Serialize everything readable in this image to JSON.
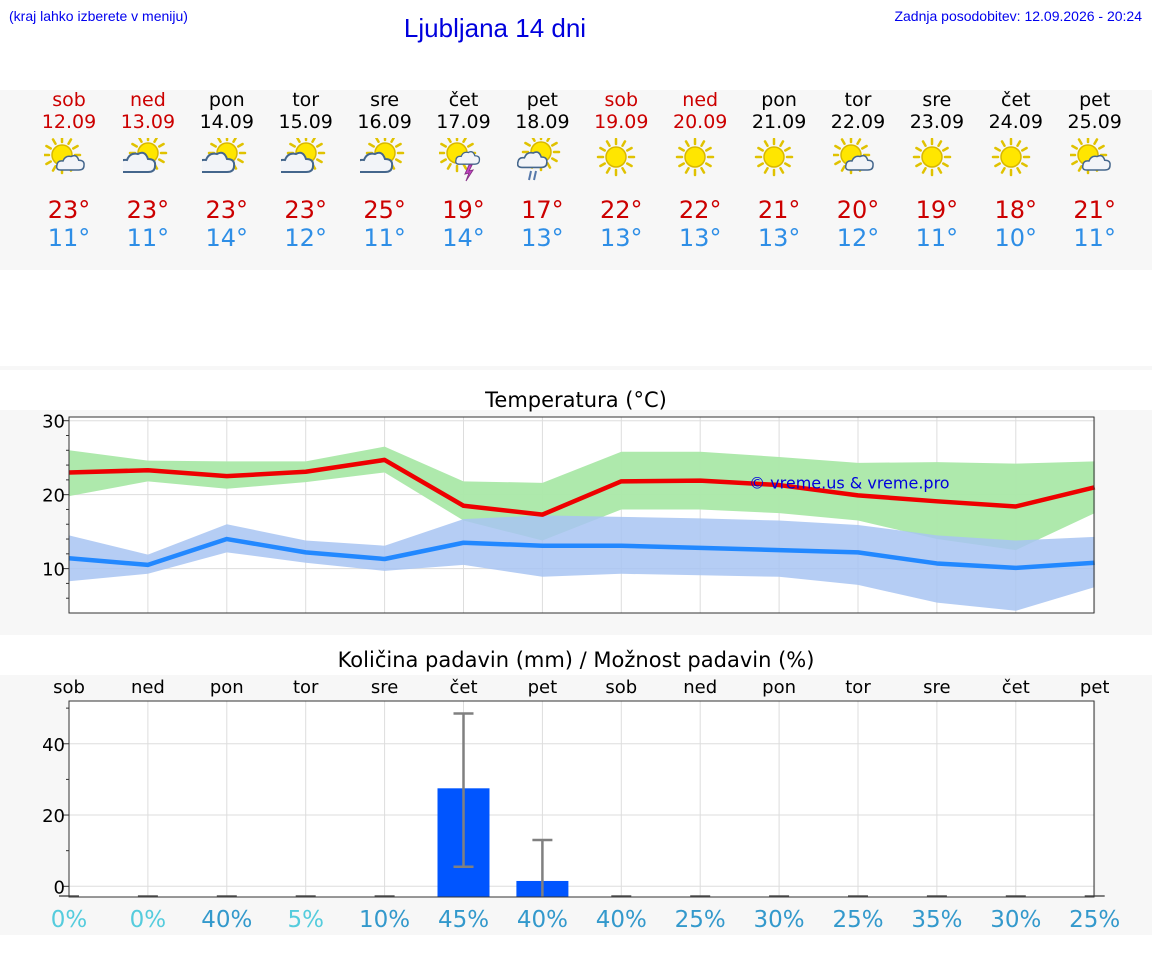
{
  "header": {
    "hint": "(kraj lahko izberete v meniju)",
    "title": "Ljubljana 14 dni",
    "updated": "Zadnja posodobitev: 12.09.2026 - 20:24"
  },
  "days": [
    {
      "name": "sob",
      "date": "12.09",
      "weekend": true,
      "icon": "sun-cloud-icon",
      "tmax": "23°",
      "tmin": "11°"
    },
    {
      "name": "ned",
      "date": "13.09",
      "weekend": true,
      "icon": "cloud-sun-icon",
      "tmax": "23°",
      "tmin": "11°"
    },
    {
      "name": "pon",
      "date": "14.09",
      "weekend": false,
      "icon": "cloud-sun-icon",
      "tmax": "23°",
      "tmin": "14°"
    },
    {
      "name": "tor",
      "date": "15.09",
      "weekend": false,
      "icon": "cloud-sun-icon",
      "tmax": "23°",
      "tmin": "12°"
    },
    {
      "name": "sre",
      "date": "16.09",
      "weekend": false,
      "icon": "cloud-sun-icon",
      "tmax": "25°",
      "tmin": "11°"
    },
    {
      "name": "čet",
      "date": "17.09",
      "weekend": false,
      "icon": "sun-thunderstorm-icon",
      "tmax": "19°",
      "tmin": "14°"
    },
    {
      "name": "pet",
      "date": "18.09",
      "weekend": false,
      "icon": "sun-rain-icon",
      "tmax": "17°",
      "tmin": "13°"
    },
    {
      "name": "sob",
      "date": "19.09",
      "weekend": true,
      "icon": "sun-icon",
      "tmax": "22°",
      "tmin": "13°"
    },
    {
      "name": "ned",
      "date": "20.09",
      "weekend": true,
      "icon": "sun-icon",
      "tmax": "22°",
      "tmin": "13°"
    },
    {
      "name": "pon",
      "date": "21.09",
      "weekend": false,
      "icon": "sun-icon",
      "tmax": "21°",
      "tmin": "13°"
    },
    {
      "name": "tor",
      "date": "22.09",
      "weekend": false,
      "icon": "sun-cloud-icon",
      "tmax": "20°",
      "tmin": "12°"
    },
    {
      "name": "sre",
      "date": "23.09",
      "weekend": false,
      "icon": "sun-icon",
      "tmax": "19°",
      "tmin": "11°"
    },
    {
      "name": "čet",
      "date": "24.09",
      "weekend": false,
      "icon": "sun-icon",
      "tmax": "18°",
      "tmin": "10°"
    },
    {
      "name": "pet",
      "date": "25.09",
      "weekend": false,
      "icon": "sun-cloud-icon",
      "tmax": "21°",
      "tmin": "11°"
    }
  ],
  "colors": {
    "weekend": "#cc0000",
    "max_line": "#ee0000",
    "min_line": "#2288ff",
    "max_band": "#aae8a8",
    "min_band": "#a8c4f2",
    "bar": "#0055ff",
    "errbar": "#808080",
    "pct_low": "#55ccdd",
    "pct": "#3399cc",
    "watermark": "#0000dd"
  },
  "chart_data": [
    {
      "type": "line",
      "title": "Temperatura (°C)",
      "annotation": "© vreme.us & vreme.pro",
      "ylim": [
        4,
        30.5
      ],
      "yticks": [
        10,
        20,
        30
      ],
      "grid": true,
      "x": [
        "12.09",
        "13.09",
        "14.09",
        "15.09",
        "16.09",
        "17.09",
        "18.09",
        "19.09",
        "20.09",
        "21.09",
        "22.09",
        "23.09",
        "24.09",
        "25.09"
      ],
      "series": [
        {
          "role": "max",
          "values": [
            23.0,
            23.3,
            22.5,
            23.1,
            24.7,
            18.5,
            17.3,
            21.8,
            21.9,
            21.3,
            19.9,
            19.1,
            18.4,
            21.0
          ],
          "band_low": [
            19.8,
            21.8,
            20.8,
            21.7,
            23.0,
            16.5,
            13.8,
            18.0,
            18.0,
            17.5,
            16.5,
            14.0,
            12.5,
            17.5
          ],
          "band_high": [
            26.0,
            24.6,
            24.5,
            24.5,
            26.5,
            21.8,
            21.6,
            25.8,
            25.8,
            25.1,
            24.3,
            24.4,
            24.2,
            24.5
          ]
        },
        {
          "role": "min",
          "values": [
            11.4,
            10.5,
            14.0,
            12.2,
            11.3,
            13.5,
            13.1,
            13.1,
            12.8,
            12.5,
            12.2,
            10.7,
            10.1,
            10.8
          ],
          "band_low": [
            8.3,
            9.3,
            12.2,
            10.8,
            9.7,
            10.5,
            8.9,
            9.3,
            9.1,
            8.9,
            7.8,
            5.4,
            4.3,
            7.5
          ],
          "band_high": [
            14.5,
            11.9,
            16.0,
            13.8,
            13.1,
            16.7,
            17.2,
            17.0,
            16.8,
            16.5,
            15.9,
            14.5,
            13.8,
            14.3
          ]
        }
      ]
    },
    {
      "type": "bar",
      "title": "Količina padavin (mm) / Možnost padavin (%)",
      "categories": [
        "sob",
        "ned",
        "pon",
        "tor",
        "sre",
        "čet",
        "pet",
        "sob",
        "ned",
        "pon",
        "tor",
        "sre",
        "čet",
        "pet"
      ],
      "values": [
        0,
        0,
        0,
        0,
        0,
        27.5,
        1.5,
        0,
        0,
        0,
        0,
        0,
        0,
        0
      ],
      "err_low": [
        0,
        0,
        0,
        0,
        0,
        5.5,
        0,
        0,
        0,
        0,
        0,
        0,
        0,
        0
      ],
      "err_high": [
        0,
        0,
        0,
        0,
        0,
        48.5,
        13.0,
        0,
        0,
        0,
        0,
        0,
        0,
        0
      ],
      "probability": [
        "0%",
        "0%",
        "40%",
        "5%",
        "10%",
        "45%",
        "40%",
        "40%",
        "25%",
        "30%",
        "25%",
        "35%",
        "30%",
        "25%"
      ],
      "ylim": [
        -3,
        52
      ],
      "yticks": [
        0,
        20,
        40
      ],
      "grid": true
    }
  ]
}
